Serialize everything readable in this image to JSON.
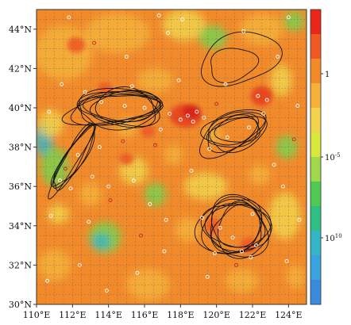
{
  "chart_data": {
    "type": "heatmap",
    "map_region": {
      "lon_range": [
        110,
        125
      ],
      "lat_range": [
        30,
        45
      ]
    },
    "x_ticks": [
      "110°E",
      "112°E",
      "114°E",
      "116°E",
      "118°E",
      "120°E",
      "122°E",
      "124°E"
    ],
    "y_ticks": [
      "30°N",
      "32°N",
      "34°N",
      "36°N",
      "38°N",
      "40°N",
      "42°N",
      "44°N"
    ],
    "grid": "dashed 0.5° lat/lon graticule",
    "colorbar": {
      "orientation": "vertical",
      "position": "right",
      "colors": [
        "#e8261a",
        "#f05a22",
        "#f28a2a",
        "#f6b13a",
        "#f2d24a",
        "#d9e63a",
        "#9fd84a",
        "#4ecb52",
        "#2ec082",
        "#34b6c6",
        "#3aa2dd",
        "#3a8bde"
      ],
      "labels": [
        "1",
        "10<sup>-5</sup>",
        "10<sup>10</sup>"
      ],
      "label_text": [
        "1",
        "10",
        "-5",
        "10",
        "10"
      ]
    },
    "background_field_colors": {
      "dominant": "#f28a2a",
      "light": "#f6b13a",
      "yellow": "#f2d24a",
      "green": "#7cd04c",
      "cyan": "#34b6c6",
      "red": "#e8261a"
    },
    "contour_clusters": [
      {
        "name": "west-central cluster",
        "center": [
          114.3,
          39.9
        ]
      },
      {
        "name": "southwest elongated",
        "center": [
          112.0,
          37.2
        ]
      },
      {
        "name": "northeast",
        "center": [
          121.2,
          42.5
        ]
      },
      {
        "name": "east-central",
        "center": [
          121.0,
          38.8
        ]
      },
      {
        "name": "southeast",
        "center": [
          121.0,
          33.8
        ]
      }
    ],
    "markers": "small white and red circles scattered over the field"
  }
}
